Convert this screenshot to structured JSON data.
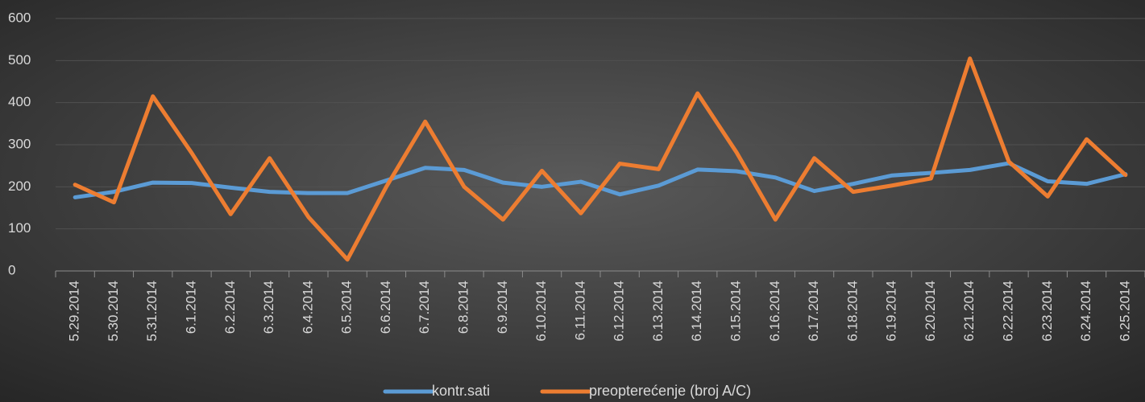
{
  "chart_data": {
    "type": "line",
    "categories": [
      "5.29.2014",
      "5.30.2014",
      "5.31.2014",
      "6.1.2014",
      "6.2.2014",
      "6.3.2014",
      "6.4.2014",
      "6.5.2014",
      "6.6.2014",
      "6.7.2014",
      "6.8.2014",
      "6.9.2014",
      "6.10.2014",
      "6.11.2014",
      "6.12.2014",
      "6.13.2014",
      "6.14.2014",
      "6.15.2014",
      "6.16.2014",
      "6.17.2014",
      "6.18.2014",
      "6.19.2014",
      "6.20.2014",
      "6.21.2014",
      "6.22.2014",
      "6.23.2014",
      "6.24.2014",
      "6.25.2014"
    ],
    "series": [
      {
        "name": "kontr.sati",
        "color": "#5b9bd5",
        "values": [
          175,
          188,
          210,
          209,
          198,
          188,
          185,
          185,
          215,
          245,
          240,
          210,
          200,
          212,
          182,
          203,
          241,
          237,
          222,
          190,
          207,
          227,
          233,
          240,
          256,
          213,
          207,
          230
        ]
      },
      {
        "name": "preopterećenje (broj A/C)",
        "color": "#ed7d31",
        "values": [
          205,
          163,
          415,
          280,
          135,
          268,
          128,
          27,
          200,
          355,
          200,
          122,
          238,
          137,
          255,
          242,
          422,
          282,
          122,
          268,
          188,
          203,
          220,
          505,
          260,
          177,
          313,
          228
        ]
      }
    ],
    "ylim": [
      0,
      600
    ],
    "yticks": [
      0,
      100,
      200,
      300,
      400,
      500,
      600
    ],
    "grid": true,
    "legend": "bottom"
  }
}
